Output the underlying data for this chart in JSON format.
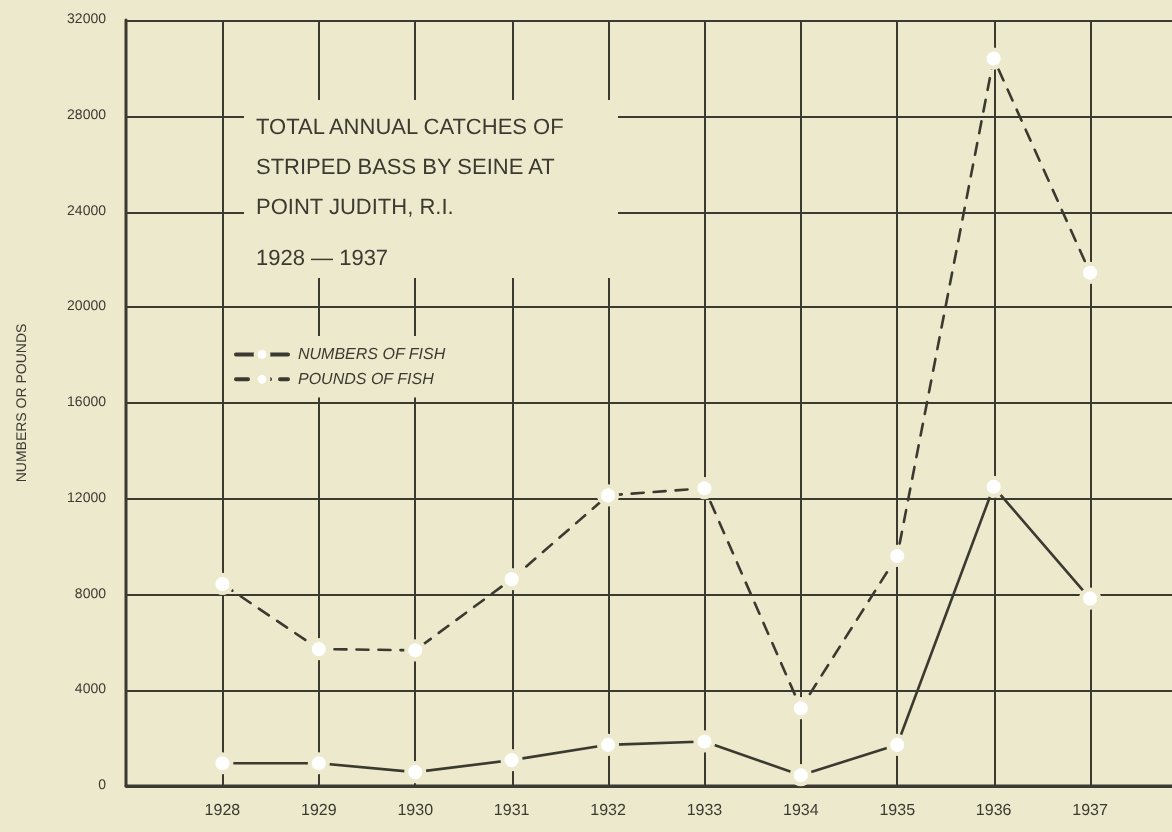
{
  "chart_data": {
    "type": "line",
    "title": "TOTAL ANNUAL CATCHES OF STRIPED BASS BY SEINE AT POINT JUDITH, R.I.",
    "subtitle": "1928 — 1937",
    "ylabel": "NUMBERS OR POUNDS",
    "x": [
      1928,
      1929,
      1930,
      1931,
      1932,
      1933,
      1934,
      1935,
      1936,
      1937
    ],
    "xlim": [
      1927,
      1937.85
    ],
    "xticks": [
      1928,
      1929,
      1930,
      1931,
      1932,
      1933,
      1934,
      1935,
      1936,
      1937
    ],
    "ylim": [
      0,
      32000
    ],
    "yticks": [
      0,
      4000,
      8000,
      12000,
      16000,
      20000,
      24000,
      28000,
      32000
    ],
    "series": [
      {
        "name": "NUMBERS OF FISH",
        "color": "#3a3a30",
        "line_style": "solid",
        "values": [
          950,
          950,
          580,
          1080,
          1720,
          1860,
          450,
          1720,
          12500,
          7830
        ]
      },
      {
        "name": "POUNDS OF FISH",
        "color": "#3a3a30",
        "line_style": "dashed",
        "values": [
          8440,
          5720,
          5670,
          8640,
          12140,
          12440,
          3250,
          9610,
          30390,
          21440
        ]
      }
    ],
    "marker": "circle",
    "grid": true,
    "legend": "top left"
  }
}
